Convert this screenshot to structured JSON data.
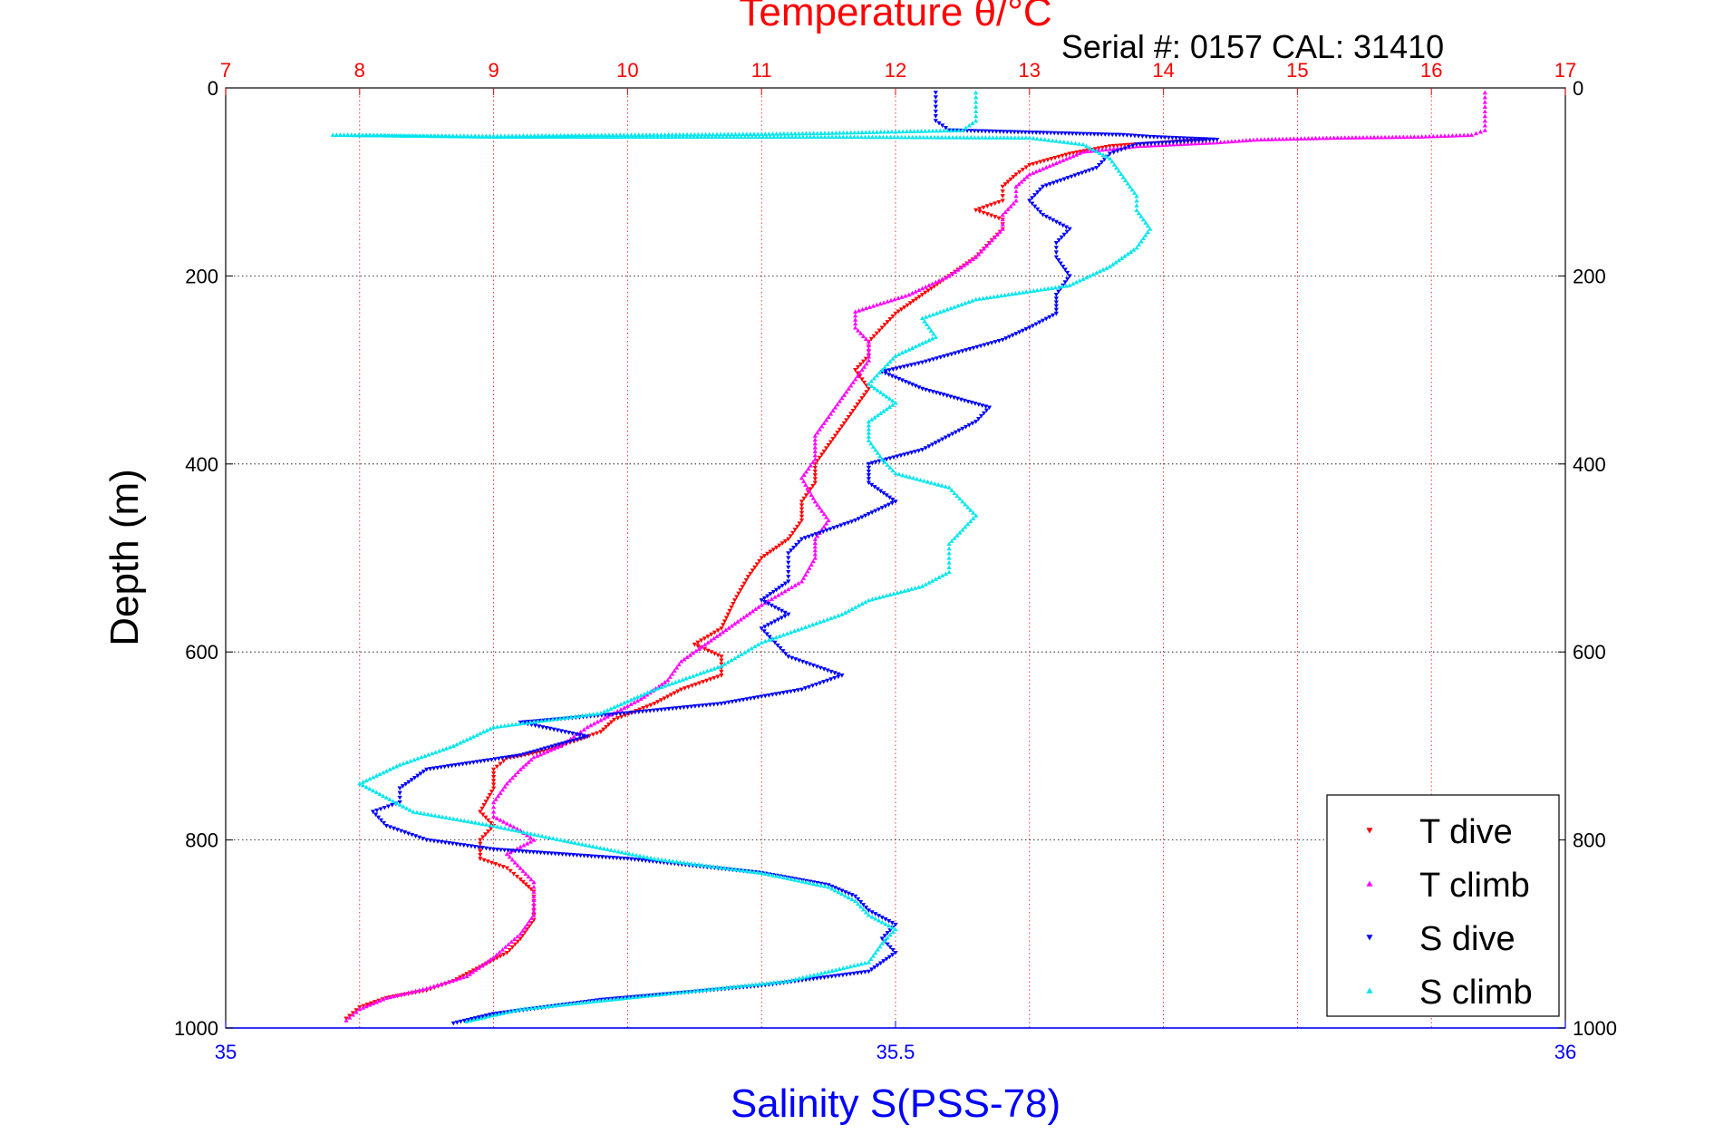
{
  "chart_data": {
    "type": "scatter",
    "title_top": "Temperature θ/°C",
    "subtitle": "Serial #: 0157  CAL: 31410",
    "xlabel_bottom": "Salinity S(PSS-78)",
    "ylabel": "Depth (m)",
    "top_axis": {
      "lim": [
        7,
        17
      ],
      "ticks": [
        "7",
        "8",
        "9",
        "10",
        "11",
        "12",
        "13",
        "14",
        "15",
        "16",
        "17"
      ],
      "color": "#ff0000"
    },
    "bottom_axis": {
      "lim": [
        35,
        36
      ],
      "ticks": [
        "35",
        "35.5",
        "36"
      ],
      "color": "#0000ff"
    },
    "y_axis": {
      "lim": [
        0,
        1000
      ],
      "reversed": true,
      "ticks": [
        "0",
        "200",
        "400",
        "600",
        "800",
        "1000"
      ]
    },
    "grid": true,
    "legend_position": "bottom-right",
    "series": [
      {
        "name": "T dive",
        "axis": "temperature",
        "color": "#ff0000",
        "marker": "triangle-down",
        "points": [
          [
            14.3,
            55
          ],
          [
            13.6,
            62
          ],
          [
            13.3,
            70
          ],
          [
            13.0,
            82
          ],
          [
            12.9,
            92
          ],
          [
            12.8,
            105
          ],
          [
            12.8,
            120
          ],
          [
            12.6,
            130
          ],
          [
            12.8,
            140
          ],
          [
            12.8,
            150
          ],
          [
            12.7,
            165
          ],
          [
            12.6,
            180
          ],
          [
            12.4,
            200
          ],
          [
            12.2,
            220
          ],
          [
            12.0,
            240
          ],
          [
            11.9,
            255
          ],
          [
            11.8,
            270
          ],
          [
            11.8,
            285
          ],
          [
            11.7,
            300
          ],
          [
            11.8,
            320
          ],
          [
            11.7,
            340
          ],
          [
            11.6,
            360
          ],
          [
            11.5,
            380
          ],
          [
            11.4,
            400
          ],
          [
            11.4,
            420
          ],
          [
            11.3,
            440
          ],
          [
            11.3,
            460
          ],
          [
            11.2,
            480
          ],
          [
            11.0,
            500
          ],
          [
            10.9,
            520
          ],
          [
            10.8,
            545
          ],
          [
            10.7,
            575
          ],
          [
            10.5,
            592
          ],
          [
            10.7,
            605
          ],
          [
            10.7,
            625
          ],
          [
            10.4,
            640
          ],
          [
            10.2,
            655
          ],
          [
            9.9,
            672
          ],
          [
            9.8,
            685
          ],
          [
            9.6,
            695
          ],
          [
            9.4,
            705
          ],
          [
            9.1,
            713
          ],
          [
            9.0,
            725
          ],
          [
            9.0,
            745
          ],
          [
            8.9,
            770
          ],
          [
            9.0,
            785
          ],
          [
            8.9,
            800
          ],
          [
            8.9,
            820
          ],
          [
            9.1,
            830
          ],
          [
            9.2,
            842
          ],
          [
            9.3,
            855
          ],
          [
            9.3,
            870
          ],
          [
            9.3,
            885
          ],
          [
            9.2,
            905
          ],
          [
            9.1,
            920
          ],
          [
            8.9,
            935
          ],
          [
            8.7,
            950
          ],
          [
            8.5,
            960
          ],
          [
            8.2,
            968
          ],
          [
            8.0,
            978
          ],
          [
            7.9,
            990
          ]
        ]
      },
      {
        "name": "T climb",
        "axis": "temperature",
        "color": "#ff00ff",
        "marker": "triangle-up",
        "points": [
          [
            16.4,
            5
          ],
          [
            16.4,
            20
          ],
          [
            16.4,
            35
          ],
          [
            16.4,
            45
          ],
          [
            16.3,
            50
          ],
          [
            15.9,
            52
          ],
          [
            15.3,
            53
          ],
          [
            14.7,
            55
          ],
          [
            14.4,
            58
          ],
          [
            13.8,
            62
          ],
          [
            13.4,
            68
          ],
          [
            13.2,
            80
          ],
          [
            13.0,
            92
          ],
          [
            12.9,
            105
          ],
          [
            12.9,
            120
          ],
          [
            12.8,
            135
          ],
          [
            12.8,
            150
          ],
          [
            12.7,
            165
          ],
          [
            12.6,
            180
          ],
          [
            12.4,
            200
          ],
          [
            12.1,
            220
          ],
          [
            11.7,
            238
          ],
          [
            11.7,
            255
          ],
          [
            11.8,
            270
          ],
          [
            11.8,
            290
          ],
          [
            11.7,
            310
          ],
          [
            11.6,
            330
          ],
          [
            11.5,
            350
          ],
          [
            11.4,
            370
          ],
          [
            11.4,
            395
          ],
          [
            11.3,
            415
          ],
          [
            11.4,
            440
          ],
          [
            11.5,
            460
          ],
          [
            11.4,
            480
          ],
          [
            11.4,
            500
          ],
          [
            11.3,
            525
          ],
          [
            11.0,
            550
          ],
          [
            10.8,
            570
          ],
          [
            10.6,
            590
          ],
          [
            10.4,
            610
          ],
          [
            10.3,
            630
          ],
          [
            10.1,
            650
          ],
          [
            9.9,
            665
          ],
          [
            9.7,
            680
          ],
          [
            9.6,
            690
          ],
          [
            9.5,
            700
          ],
          [
            9.3,
            712
          ],
          [
            9.2,
            725
          ],
          [
            9.1,
            740
          ],
          [
            9.0,
            760
          ],
          [
            9.0,
            775
          ],
          [
            9.2,
            790
          ],
          [
            9.3,
            800
          ],
          [
            9.1,
            815
          ],
          [
            9.2,
            830
          ],
          [
            9.3,
            845
          ],
          [
            9.3,
            860
          ],
          [
            9.3,
            880
          ],
          [
            9.2,
            900
          ],
          [
            9.0,
            925
          ],
          [
            8.8,
            945
          ],
          [
            8.5,
            958
          ],
          [
            8.2,
            968
          ],
          [
            8.0,
            980
          ],
          [
            7.9,
            992
          ]
        ]
      },
      {
        "name": "S dive",
        "axis": "salinity",
        "color": "#0000ff",
        "marker": "triangle-down",
        "points": [
          [
            35.53,
            5
          ],
          [
            35.53,
            20
          ],
          [
            35.53,
            35
          ],
          [
            35.54,
            45
          ],
          [
            35.67,
            50
          ],
          [
            35.69,
            52
          ],
          [
            35.74,
            55
          ],
          [
            35.68,
            60
          ],
          [
            35.66,
            70
          ],
          [
            35.65,
            85
          ],
          [
            35.61,
            105
          ],
          [
            35.6,
            120
          ],
          [
            35.61,
            135
          ],
          [
            35.63,
            150
          ],
          [
            35.62,
            165
          ],
          [
            35.62,
            180
          ],
          [
            35.63,
            200
          ],
          [
            35.62,
            220
          ],
          [
            35.62,
            240
          ],
          [
            35.6,
            255
          ],
          [
            35.58,
            268
          ],
          [
            35.55,
            280
          ],
          [
            35.52,
            292
          ],
          [
            35.49,
            302
          ],
          [
            35.52,
            320
          ],
          [
            35.57,
            340
          ],
          [
            35.56,
            355
          ],
          [
            35.54,
            370
          ],
          [
            35.52,
            385
          ],
          [
            35.48,
            400
          ],
          [
            35.48,
            420
          ],
          [
            35.5,
            440
          ],
          [
            35.47,
            460
          ],
          [
            35.43,
            480
          ],
          [
            35.42,
            495
          ],
          [
            35.42,
            510
          ],
          [
            35.42,
            525
          ],
          [
            35.4,
            545
          ],
          [
            35.42,
            560
          ],
          [
            35.4,
            575
          ],
          [
            35.41,
            590
          ],
          [
            35.42,
            605
          ],
          [
            35.46,
            625
          ],
          [
            35.43,
            640
          ],
          [
            35.37,
            655
          ],
          [
            35.3,
            665
          ],
          [
            35.22,
            675
          ],
          [
            35.27,
            690
          ],
          [
            35.22,
            710
          ],
          [
            35.15,
            725
          ],
          [
            35.13,
            745
          ],
          [
            35.13,
            760
          ],
          [
            35.11,
            770
          ],
          [
            35.12,
            785
          ],
          [
            35.15,
            800
          ],
          [
            35.2,
            810
          ],
          [
            35.3,
            820
          ],
          [
            35.4,
            835
          ],
          [
            35.45,
            848
          ],
          [
            35.47,
            860
          ],
          [
            35.48,
            875
          ],
          [
            35.5,
            890
          ],
          [
            35.49,
            905
          ],
          [
            35.5,
            920
          ],
          [
            35.48,
            940
          ],
          [
            35.4,
            955
          ],
          [
            35.28,
            970
          ],
          [
            35.2,
            985
          ],
          [
            35.17,
            995
          ]
        ]
      },
      {
        "name": "S climb",
        "axis": "salinity",
        "color": "#00e5ee",
        "marker": "triangle-up",
        "points": [
          [
            35.56,
            5
          ],
          [
            35.56,
            20
          ],
          [
            35.56,
            35
          ],
          [
            35.55,
            45
          ],
          [
            35.45,
            48
          ],
          [
            35.4,
            49
          ],
          [
            35.3,
            50
          ],
          [
            35.2,
            51
          ],
          [
            35.15,
            51
          ],
          [
            35.08,
            50
          ],
          [
            35.2,
            52
          ],
          [
            35.45,
            52
          ],
          [
            35.6,
            53
          ],
          [
            35.64,
            60
          ],
          [
            35.66,
            75
          ],
          [
            35.67,
            95
          ],
          [
            35.68,
            115
          ],
          [
            35.68,
            130
          ],
          [
            35.69,
            150
          ],
          [
            35.68,
            170
          ],
          [
            35.66,
            190
          ],
          [
            35.63,
            210
          ],
          [
            35.56,
            225
          ],
          [
            35.52,
            245
          ],
          [
            35.53,
            265
          ],
          [
            35.5,
            285
          ],
          [
            35.49,
            300
          ],
          [
            35.48,
            315
          ],
          [
            35.5,
            335
          ],
          [
            35.48,
            355
          ],
          [
            35.48,
            375
          ],
          [
            35.49,
            395
          ],
          [
            35.5,
            410
          ],
          [
            35.54,
            425
          ],
          [
            35.55,
            440
          ],
          [
            35.56,
            455
          ],
          [
            35.55,
            470
          ],
          [
            35.54,
            485
          ],
          [
            35.54,
            500
          ],
          [
            35.54,
            515
          ],
          [
            35.52,
            530
          ],
          [
            35.48,
            545
          ],
          [
            35.46,
            560
          ],
          [
            35.43,
            575
          ],
          [
            35.4,
            590
          ],
          [
            35.37,
            615
          ],
          [
            35.32,
            640
          ],
          [
            35.28,
            665
          ],
          [
            35.2,
            680
          ],
          [
            35.17,
            700
          ],
          [
            35.13,
            720
          ],
          [
            35.1,
            740
          ],
          [
            35.12,
            755
          ],
          [
            35.14,
            770
          ],
          [
            35.2,
            785
          ],
          [
            35.25,
            800
          ],
          [
            35.32,
            820
          ],
          [
            35.4,
            835
          ],
          [
            35.45,
            850
          ],
          [
            35.47,
            865
          ],
          [
            35.48,
            880
          ],
          [
            35.5,
            895
          ],
          [
            35.49,
            910
          ],
          [
            35.48,
            930
          ],
          [
            35.42,
            950
          ],
          [
            35.32,
            965
          ],
          [
            35.22,
            980
          ],
          [
            35.18,
            993
          ]
        ]
      }
    ]
  }
}
